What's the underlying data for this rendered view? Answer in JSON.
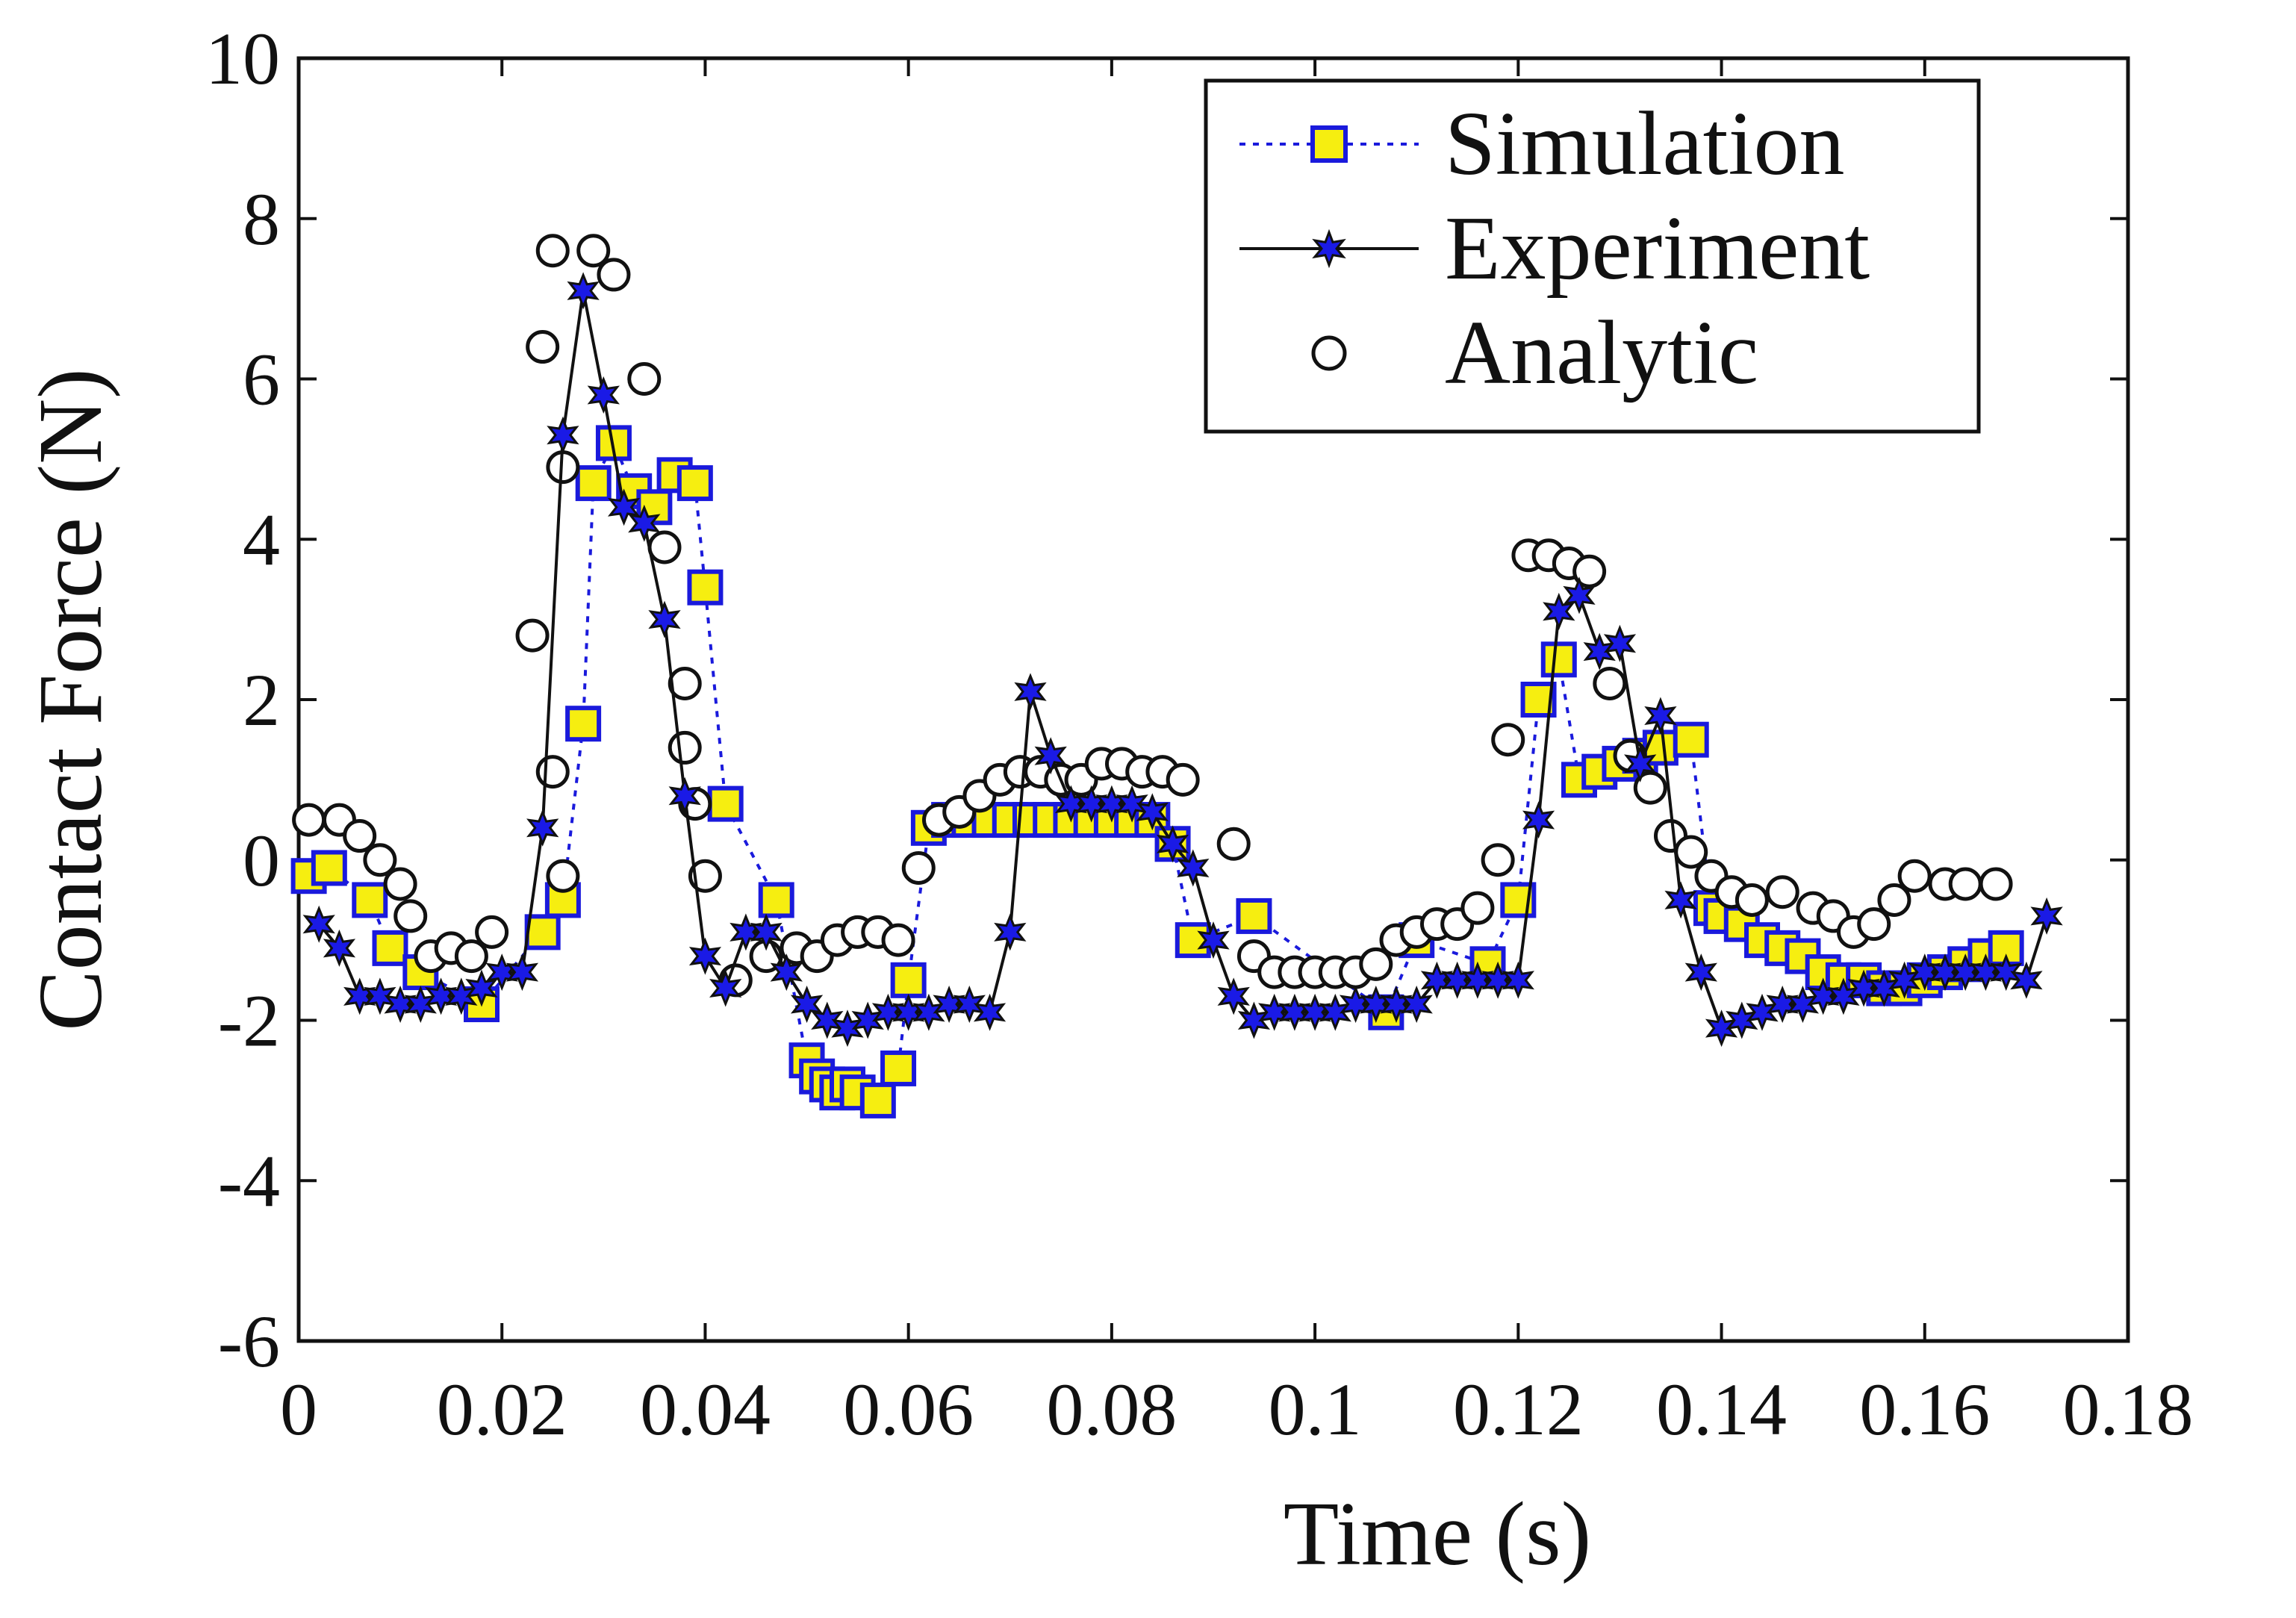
{
  "chart_data": {
    "type": "line",
    "title": "",
    "xlabel": "Time (s)",
    "ylabel": "Contact Force (N)",
    "xlim": [
      0,
      0.18
    ],
    "ylim": [
      -6,
      10
    ],
    "xticks": [
      0,
      0.02,
      0.04,
      0.06,
      0.08,
      0.1,
      0.12,
      0.14,
      0.16,
      0.18
    ],
    "xtick_labels": [
      "0",
      "0.02",
      "0.04",
      "0.06",
      "0.08",
      "0.1",
      "0.12",
      "0.14",
      "0.16",
      "0.18"
    ],
    "yticks": [
      -6,
      -4,
      -2,
      0,
      2,
      4,
      6,
      8,
      10
    ],
    "ytick_labels": [
      "-6",
      "-4",
      "-2",
      "0",
      "2",
      "4",
      "6",
      "8",
      "10"
    ],
    "grid": false,
    "legend_position": "top-right",
    "series": [
      {
        "name": "Simulation",
        "marker": "square",
        "line_style": "dotted",
        "color": "#1a1adc",
        "fill": "#f6ee10",
        "x": [
          0.001,
          0.003,
          0.007,
          0.009,
          0.012,
          0.018,
          0.024,
          0.026,
          0.028,
          0.029,
          0.031,
          0.033,
          0.035,
          0.037,
          0.039,
          0.04,
          0.042,
          0.047,
          0.05,
          0.051,
          0.052,
          0.053,
          0.054,
          0.055,
          0.057,
          0.059,
          0.06,
          0.062,
          0.064,
          0.066,
          0.068,
          0.07,
          0.072,
          0.074,
          0.076,
          0.078,
          0.08,
          0.082,
          0.084,
          0.086,
          0.088,
          0.094,
          0.107,
          0.11,
          0.117,
          0.12,
          0.122,
          0.124,
          0.126,
          0.128,
          0.13,
          0.132,
          0.134,
          0.137,
          0.139,
          0.14,
          0.142,
          0.144,
          0.146,
          0.148,
          0.15,
          0.152,
          0.154,
          0.156,
          0.158,
          0.16,
          0.162,
          0.164,
          0.166,
          0.168
        ],
        "y": [
          -0.2,
          -0.1,
          -0.5,
          -1.1,
          -1.4,
          -1.8,
          -0.9,
          -0.5,
          1.7,
          4.7,
          5.2,
          4.6,
          4.4,
          4.8,
          4.7,
          3.4,
          0.7,
          -0.5,
          -2.5,
          -2.7,
          -2.8,
          -2.9,
          -2.8,
          -2.9,
          -3.0,
          -2.6,
          -1.5,
          0.4,
          0.5,
          0.5,
          0.5,
          0.5,
          0.5,
          0.5,
          0.5,
          0.5,
          0.5,
          0.5,
          0.5,
          0.2,
          -1.0,
          -0.7,
          -1.9,
          -1.0,
          -1.3,
          -0.5,
          2.0,
          2.5,
          1.0,
          1.1,
          1.2,
          1.3,
          1.4,
          1.5,
          -0.6,
          -0.7,
          -0.8,
          -1.0,
          -1.1,
          -1.2,
          -1.4,
          -1.5,
          -1.5,
          -1.6,
          -1.6,
          -1.5,
          -1.4,
          -1.3,
          -1.2,
          -1.1
        ]
      },
      {
        "name": "Experiment",
        "marker": "star",
        "line_style": "solid",
        "color": "#111111",
        "fill": "#1a1ae6",
        "x": [
          0.002,
          0.004,
          0.006,
          0.008,
          0.01,
          0.012,
          0.014,
          0.016,
          0.018,
          0.02,
          0.022,
          0.024,
          0.026,
          0.028,
          0.03,
          0.032,
          0.034,
          0.036,
          0.038,
          0.04,
          0.042,
          0.044,
          0.046,
          0.048,
          0.05,
          0.052,
          0.054,
          0.056,
          0.058,
          0.06,
          0.062,
          0.064,
          0.066,
          0.068,
          0.07,
          0.072,
          0.074,
          0.076,
          0.078,
          0.08,
          0.082,
          0.084,
          0.086,
          0.088,
          0.09,
          0.092,
          0.094,
          0.096,
          0.098,
          0.1,
          0.102,
          0.104,
          0.106,
          0.108,
          0.11,
          0.112,
          0.114,
          0.116,
          0.118,
          0.12,
          0.122,
          0.124,
          0.126,
          0.128,
          0.13,
          0.132,
          0.134,
          0.136,
          0.138,
          0.14,
          0.142,
          0.144,
          0.146,
          0.148,
          0.15,
          0.152,
          0.154,
          0.156,
          0.158,
          0.16,
          0.162,
          0.164,
          0.166,
          0.168,
          0.17,
          0.172
        ],
        "y": [
          -0.8,
          -1.1,
          -1.7,
          -1.7,
          -1.8,
          -1.8,
          -1.7,
          -1.7,
          -1.6,
          -1.4,
          -1.4,
          0.4,
          5.3,
          7.1,
          5.8,
          4.4,
          4.2,
          3.0,
          0.8,
          -1.2,
          -1.6,
          -0.9,
          -0.9,
          -1.4,
          -1.8,
          -2.0,
          -2.1,
          -2.0,
          -1.9,
          -1.9,
          -1.9,
          -1.8,
          -1.8,
          -1.9,
          -0.9,
          2.1,
          1.3,
          0.7,
          0.7,
          0.7,
          0.7,
          0.6,
          0.2,
          -0.1,
          -1.0,
          -1.7,
          -2.0,
          -1.9,
          -1.9,
          -1.9,
          -1.9,
          -1.8,
          -1.8,
          -1.8,
          -1.8,
          -1.5,
          -1.5,
          -1.5,
          -1.5,
          -1.5,
          0.5,
          3.1,
          3.3,
          2.6,
          2.7,
          1.2,
          1.8,
          -0.5,
          -1.4,
          -2.1,
          -2.0,
          -1.9,
          -1.8,
          -1.8,
          -1.7,
          -1.7,
          -1.6,
          -1.6,
          -1.5,
          -1.4,
          -1.4,
          -1.4,
          -1.4,
          -1.4,
          -1.5,
          -0.7
        ]
      },
      {
        "name": "Analytic",
        "marker": "circle",
        "line_style": "none",
        "color": "#111111",
        "fill": "#ffffff",
        "x": [
          0.001,
          0.004,
          0.006,
          0.008,
          0.01,
          0.011,
          0.013,
          0.015,
          0.017,
          0.019,
          0.023,
          0.024,
          0.025,
          0.026,
          0.025,
          0.026,
          0.029,
          0.031,
          0.034,
          0.036,
          0.038,
          0.038,
          0.039,
          0.04,
          0.043,
          0.046,
          0.049,
          0.051,
          0.053,
          0.055,
          0.057,
          0.059,
          0.061,
          0.063,
          0.065,
          0.067,
          0.069,
          0.071,
          0.073,
          0.075,
          0.077,
          0.079,
          0.081,
          0.083,
          0.085,
          0.087,
          0.092,
          0.094,
          0.096,
          0.098,
          0.1,
          0.102,
          0.104,
          0.106,
          0.108,
          0.11,
          0.112,
          0.114,
          0.116,
          0.118,
          0.119,
          0.121,
          0.123,
          0.125,
          0.127,
          0.129,
          0.131,
          0.133,
          0.135,
          0.137,
          0.139,
          0.141,
          0.143,
          0.146,
          0.149,
          0.151,
          0.153,
          0.155,
          0.157,
          0.159,
          0.162,
          0.164,
          0.167
        ],
        "y": [
          0.5,
          0.5,
          0.3,
          0.0,
          -0.3,
          -0.7,
          -1.2,
          -1.1,
          -1.2,
          -0.9,
          2.8,
          6.4,
          7.6,
          4.9,
          1.1,
          -0.2,
          7.6,
          7.3,
          6.0,
          3.9,
          2.2,
          1.4,
          0.7,
          -0.2,
          -1.5,
          -1.2,
          -1.1,
          -1.2,
          -1.0,
          -0.9,
          -0.9,
          -1.0,
          -0.1,
          0.5,
          0.6,
          0.8,
          1.0,
          1.1,
          1.1,
          1.0,
          1.0,
          1.2,
          1.2,
          1.1,
          1.1,
          1.0,
          0.2,
          -1.2,
          -1.4,
          -1.4,
          -1.4,
          -1.4,
          -1.4,
          -1.3,
          -1.0,
          -0.9,
          -0.8,
          -0.8,
          -0.6,
          0.0,
          1.5,
          3.8,
          3.8,
          3.7,
          3.6,
          2.2,
          1.3,
          0.9,
          0.3,
          0.1,
          -0.2,
          -0.4,
          -0.5,
          -0.4,
          -0.6,
          -0.7,
          -0.9,
          -0.8,
          -0.5,
          -0.2,
          -0.3,
          -0.3,
          -0.3
        ]
      }
    ]
  }
}
